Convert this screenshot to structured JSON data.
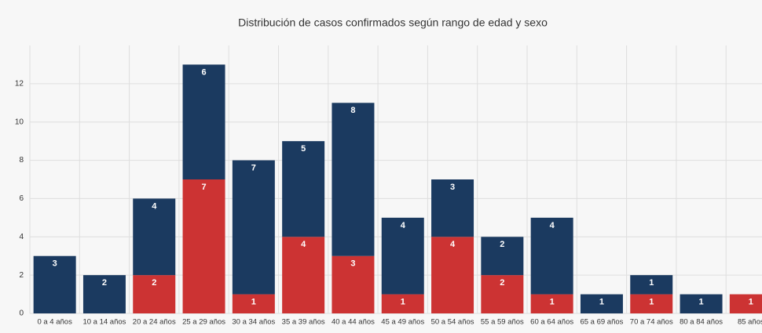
{
  "chart_data": {
    "type": "stacked_bar",
    "title": "Distribución de casos confirmados según rango de edad y sexo",
    "categories": [
      "0 a 4 años",
      "10 a 14 años",
      "20 a 24 años",
      "25 a 29 años",
      "30 a 34 años",
      "35 a 39 años",
      "40 a 44 años",
      "45 a 49 años",
      "50 a 54 años",
      "55 a 59 años",
      "60 a 64 años",
      "65 a 69 años",
      "70 a 74 años",
      "80 a 84 años",
      "85 años"
    ],
    "series": [
      {
        "color": "#cc3333",
        "values": [
          0,
          0,
          2,
          7,
          1,
          4,
          3,
          1,
          4,
          2,
          1,
          0,
          1,
          0,
          1
        ]
      },
      {
        "color": "#1b3a60",
        "values": [
          3,
          2,
          4,
          6,
          7,
          5,
          8,
          4,
          3,
          2,
          4,
          1,
          1,
          1,
          0
        ]
      }
    ],
    "ylim": [
      0,
      14
    ],
    "yticks": [
      0,
      2,
      4,
      6,
      8,
      10,
      12
    ],
    "grid": true
  }
}
